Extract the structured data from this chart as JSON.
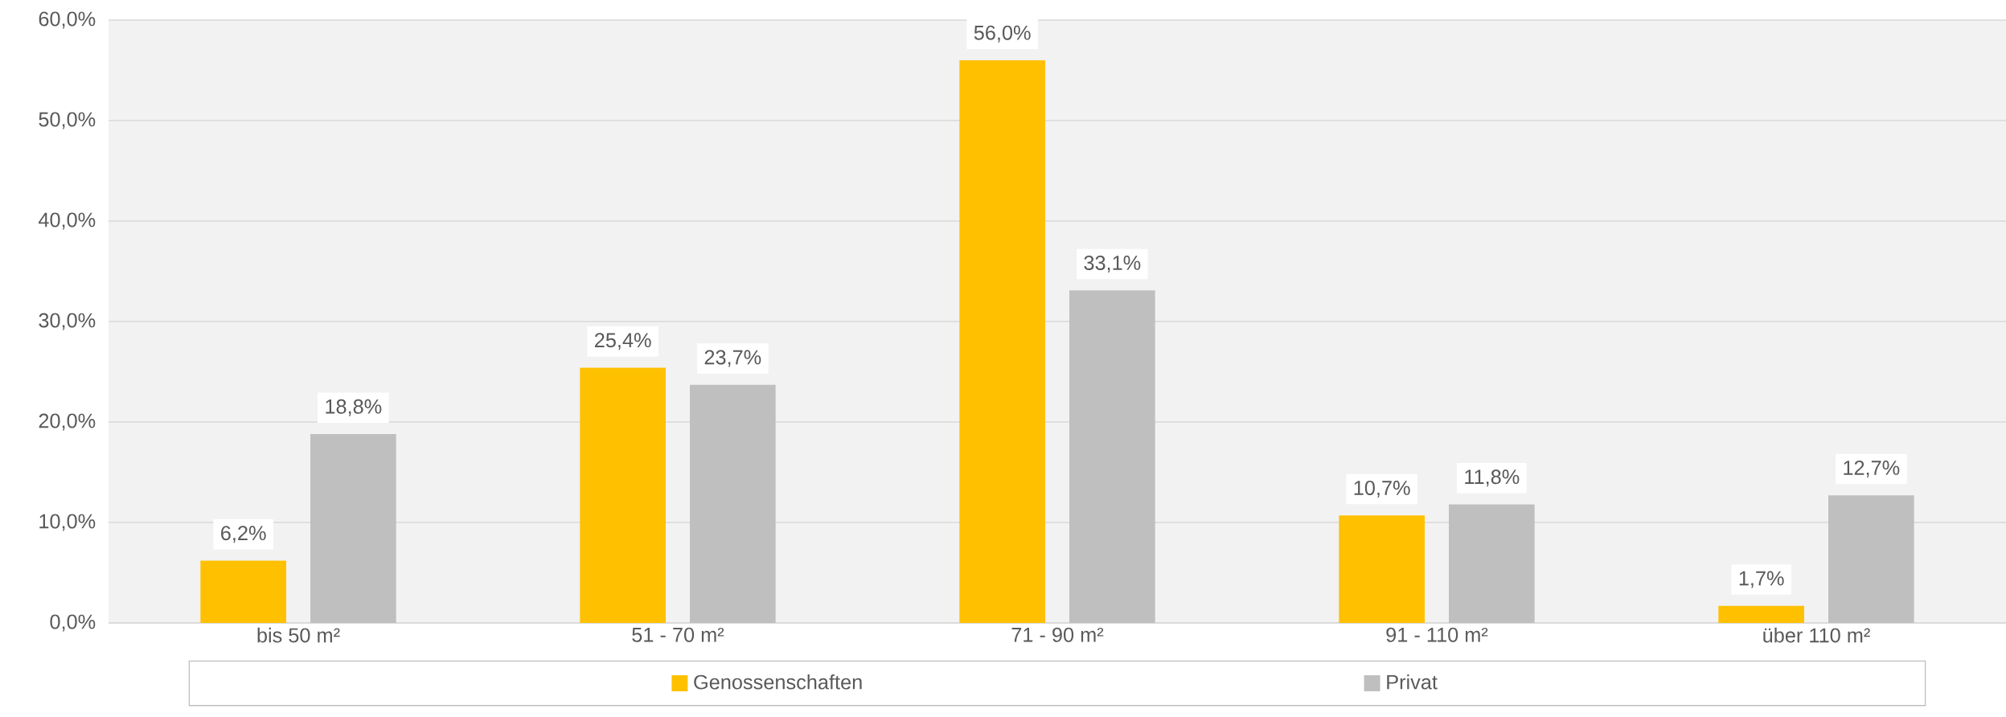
{
  "chart_data": {
    "type": "bar",
    "categories": [
      "bis 50 m²",
      "51 - 70 m²",
      "71 - 90 m²",
      "91 - 110 m²",
      "über 110 m²"
    ],
    "series": [
      {
        "name": "Genossenschaften",
        "color": "#ffc000",
        "values": [
          6.2,
          25.4,
          56.0,
          10.7,
          1.7
        ],
        "value_labels": [
          "6,2%",
          "25,4%",
          "56,0%",
          "10,7%",
          "1,7%"
        ]
      },
      {
        "name": "Privat",
        "color": "#bfbfbf",
        "values": [
          18.8,
          23.7,
          33.1,
          11.8,
          12.7
        ],
        "value_labels": [
          "18,8%",
          "23,7%",
          "33,1%",
          "11,8%",
          "12,7%"
        ]
      }
    ],
    "ylim": [
      0,
      60
    ],
    "yticks": [
      {
        "value": 0,
        "label": "0,0%"
      },
      {
        "value": 10,
        "label": "10,0%"
      },
      {
        "value": 20,
        "label": "20,0%"
      },
      {
        "value": 30,
        "label": "30,0%"
      },
      {
        "value": 40,
        "label": "40,0%"
      },
      {
        "value": 50,
        "label": "50,0%"
      },
      {
        "value": 60,
        "label": "60,0%"
      }
    ],
    "grid": "y",
    "legend": "bottom"
  }
}
